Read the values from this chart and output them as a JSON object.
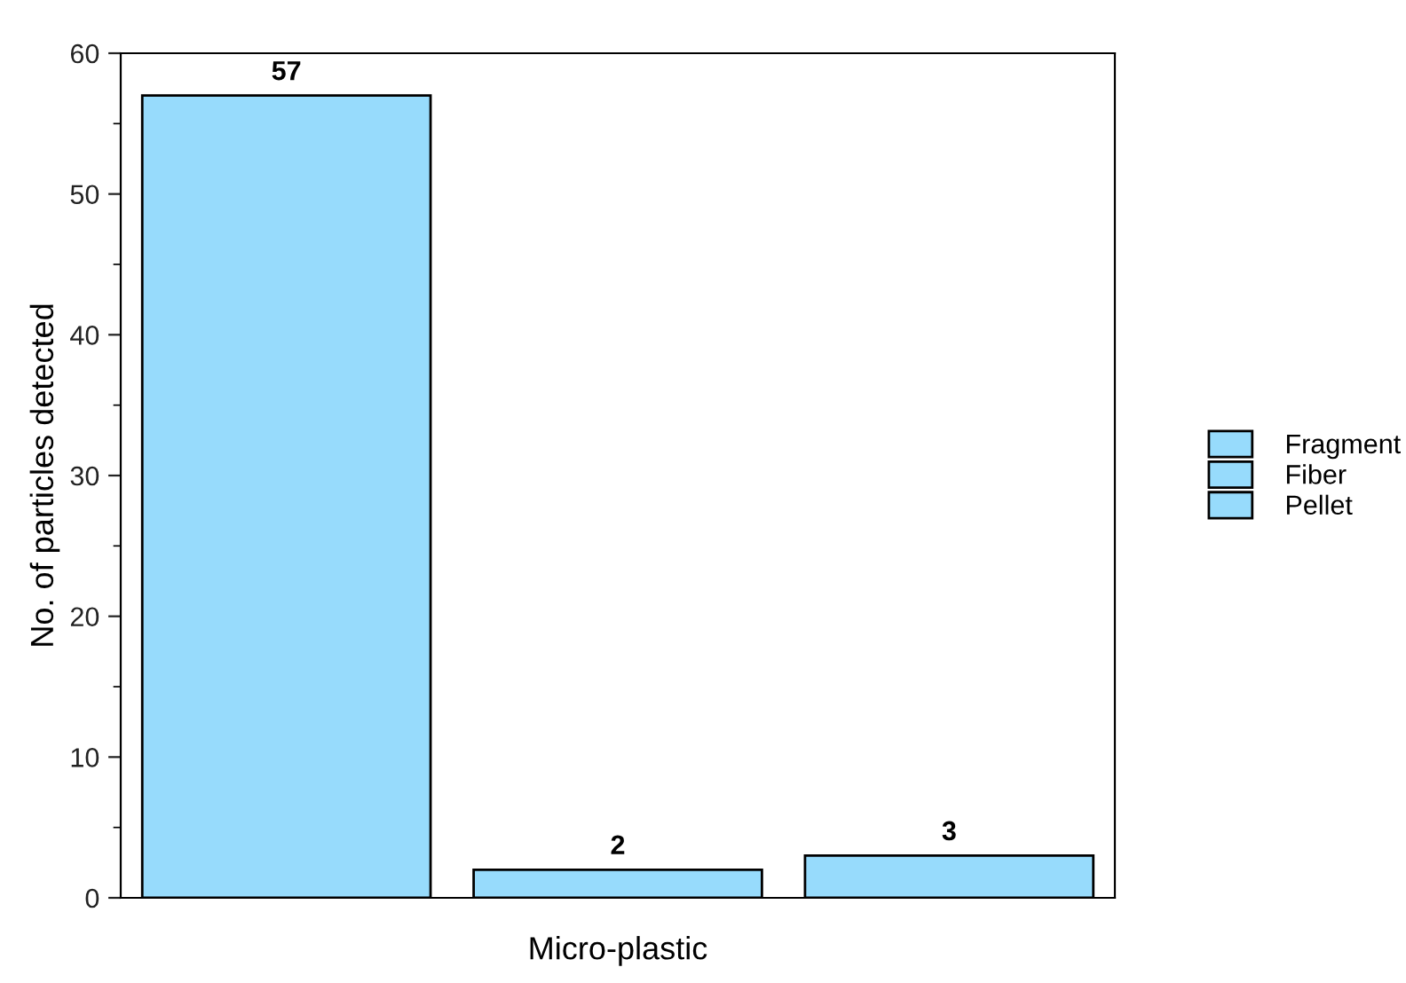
{
  "chart_data": {
    "type": "bar",
    "xlabel": "Micro-plastic",
    "ylabel": "No. of particles detected",
    "categories": [
      null
    ],
    "series": [
      {
        "name": "Fragment",
        "color": "#97dbfc",
        "values": [
          57
        ]
      },
      {
        "name": "Fiber",
        "color": "#97dbfc",
        "values": [
          2
        ]
      },
      {
        "name": "Pellet",
        "color": "#97dbfc",
        "values": [
          3
        ]
      }
    ],
    "ylim": [
      0,
      60
    ],
    "yticks": [
      0,
      {
        "value": 5,
        "label": null
      },
      10,
      {
        "value": 15,
        "label": null
      },
      20,
      {
        "value": 25,
        "label": null
      },
      30,
      {
        "value": 35,
        "label": null
      },
      40,
      {
        "value": 45,
        "label": null
      },
      50,
      {
        "value": 55,
        "label": null
      },
      60
    ],
    "data_labels": true,
    "legend": "right",
    "grid": false
  }
}
